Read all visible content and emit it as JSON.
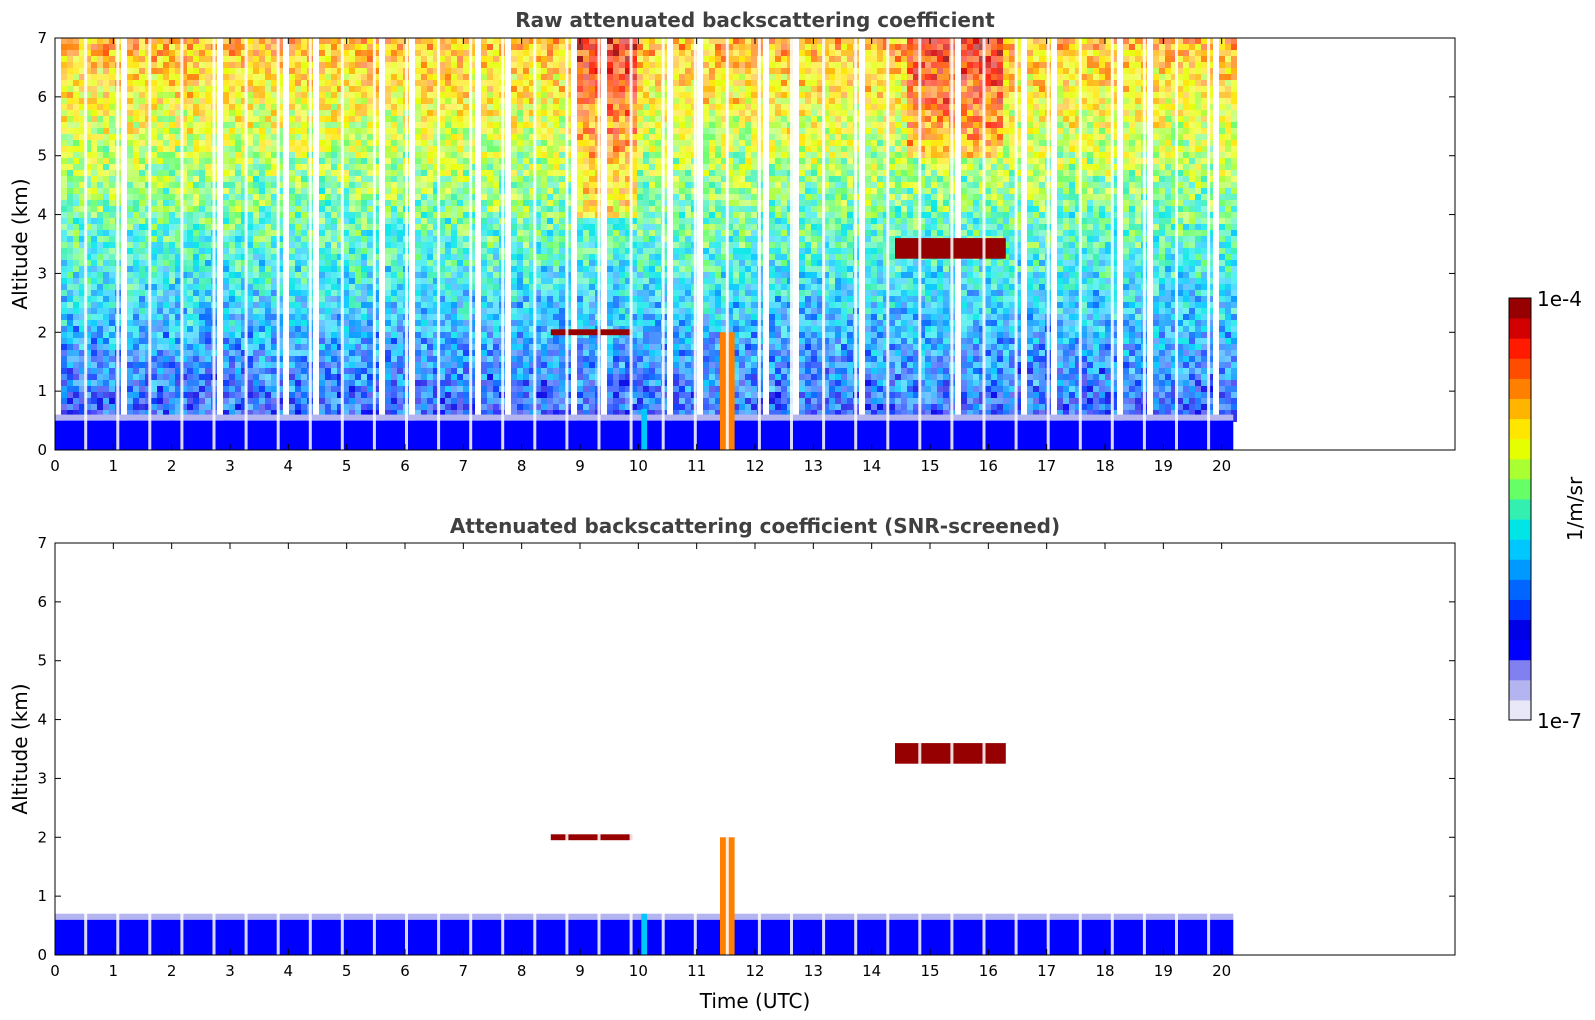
{
  "chart_data": [
    {
      "type": "heatmap",
      "title": "Raw attenuated backscattering coefficient",
      "ylabel": "Altitude (km)",
      "xlabel": "",
      "xlim": [
        0,
        24
      ],
      "ylim": [
        0,
        7
      ],
      "xticks": [
        "0",
        "1",
        "2",
        "3",
        "4",
        "5",
        "6",
        "7",
        "8",
        "9",
        "10",
        "11",
        "12",
        "13",
        "14",
        "15",
        "16",
        "17",
        "18",
        "19",
        "20"
      ],
      "yticks": [
        "0",
        "1",
        "2",
        "3",
        "4",
        "5",
        "6",
        "7"
      ],
      "data_extent_hours": [
        0,
        20.2
      ],
      "features": [
        {
          "kind": "surface_layer",
          "x": [
            0,
            20.2
          ],
          "y": [
            0,
            0.5
          ],
          "level": "1e-7 to 1e-6"
        },
        {
          "kind": "cloud",
          "x": [
            8.5,
            9.9
          ],
          "y": [
            1.95,
            2.05
          ],
          "level": "1e-4"
        },
        {
          "kind": "cloud",
          "x": [
            14.4,
            16.3
          ],
          "y": [
            3.25,
            3.6
          ],
          "level": "1e-4"
        },
        {
          "kind": "plume",
          "x": [
            11.4,
            11.65
          ],
          "y": [
            0,
            2.0
          ],
          "level": "high"
        },
        {
          "kind": "plume",
          "x": [
            10.05,
            10.15
          ],
          "y": [
            0,
            0.7
          ],
          "level": "mid"
        },
        {
          "kind": "noise_high",
          "x": [
            8.8,
            9.9
          ],
          "y": [
            4.0,
            7.0
          ],
          "level": "high"
        },
        {
          "kind": "noise_high",
          "x": [
            14.6,
            16.2
          ],
          "y": [
            5.0,
            7.0
          ],
          "level": "high"
        }
      ]
    },
    {
      "type": "heatmap",
      "title": "Attenuated backscattering coefficient (SNR-screened)",
      "ylabel": "Altitude (km)",
      "xlabel": "Time (UTC)",
      "xlim": [
        0,
        24
      ],
      "ylim": [
        0,
        7
      ],
      "xticks": [
        "0",
        "1",
        "2",
        "3",
        "4",
        "5",
        "6",
        "7",
        "8",
        "9",
        "10",
        "11",
        "12",
        "13",
        "14",
        "15",
        "16",
        "17",
        "18",
        "19",
        "20"
      ],
      "yticks": [
        "0",
        "1",
        "2",
        "3",
        "4",
        "5",
        "6",
        "7"
      ],
      "data_extent_hours": [
        0,
        20.2
      ],
      "features": [
        {
          "kind": "surface_layer",
          "x": [
            0,
            20.2
          ],
          "y": [
            0,
            0.6
          ],
          "level": "1e-7 to 1e-6"
        },
        {
          "kind": "cloud",
          "x": [
            8.5,
            9.9
          ],
          "y": [
            1.95,
            2.05
          ],
          "level": "1e-4"
        },
        {
          "kind": "cloud",
          "x": [
            14.4,
            16.3
          ],
          "y": [
            3.25,
            3.6
          ],
          "level": "1e-4"
        },
        {
          "kind": "plume",
          "x": [
            11.4,
            11.65
          ],
          "y": [
            0,
            2.0
          ],
          "level": "high"
        },
        {
          "kind": "plume",
          "x": [
            10.05,
            10.15
          ],
          "y": [
            0,
            0.7
          ],
          "level": "mid"
        }
      ]
    }
  ],
  "colorbar": {
    "label": "1/m/sr",
    "max_label": "1e-4",
    "min_label": "1e-7",
    "colors": [
      "#e8e8f8",
      "#b4b4f0",
      "#8080f0",
      "#0000ff",
      "#0000e6",
      "#0033ff",
      "#0066ff",
      "#0099ff",
      "#00c8ff",
      "#00e6e6",
      "#33f0b0",
      "#66ff66",
      "#aaff33",
      "#e6ff00",
      "#ffe600",
      "#ffb400",
      "#ff8000",
      "#ff4d00",
      "#ff1a00",
      "#d20000",
      "#960000"
    ]
  }
}
